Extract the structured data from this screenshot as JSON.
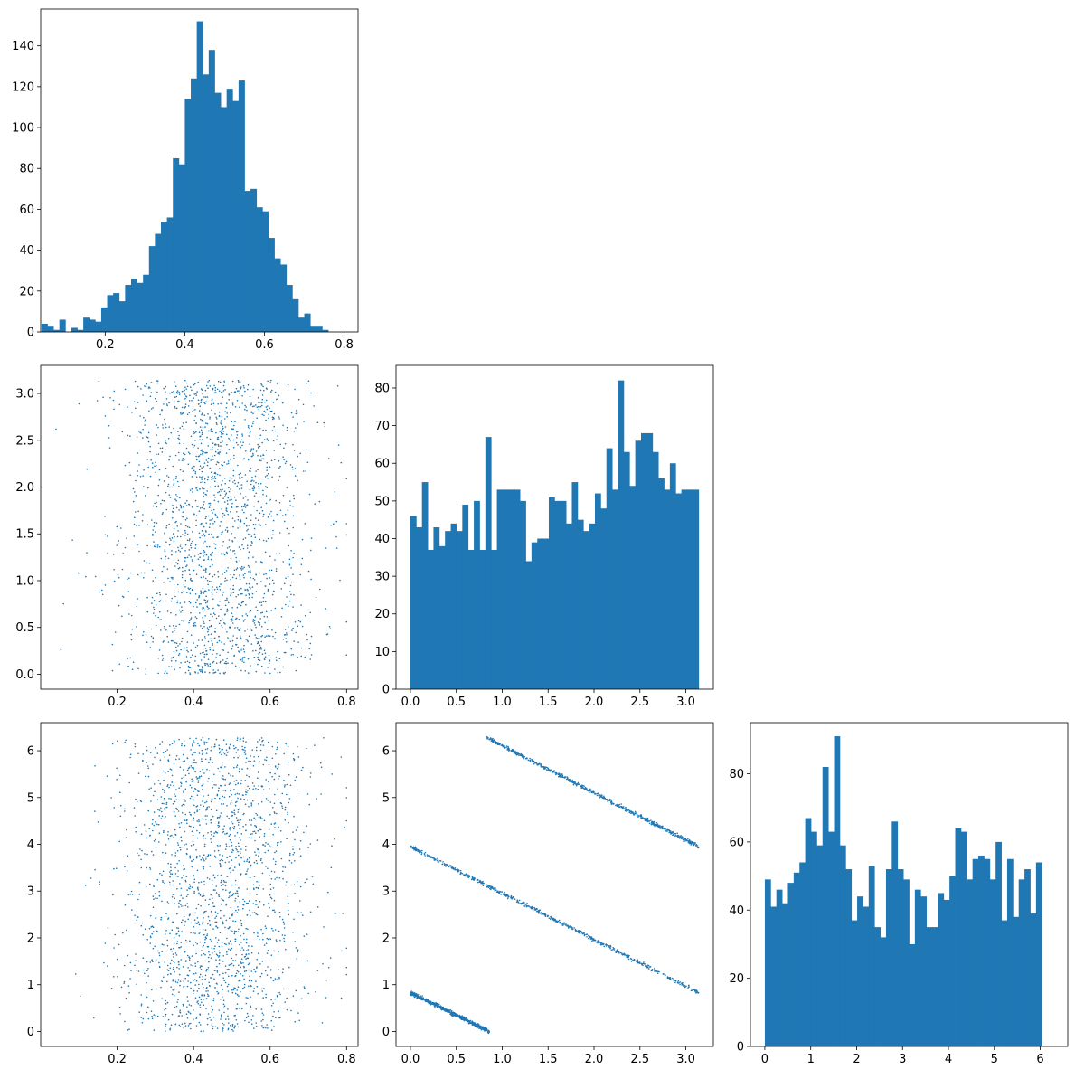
{
  "colors": {
    "bar": "#1f77b4",
    "point": "#1f77b4",
    "axis": "#000000",
    "background": "#ffffff"
  },
  "chart_data": [
    {
      "id": "hist-00",
      "type": "bar",
      "variant": "histogram",
      "position": "row 1, col 1",
      "title": "",
      "xlabel": "",
      "ylabel": "",
      "xlim": [
        0.038,
        0.835
      ],
      "ylim": [
        0,
        158
      ],
      "bin_start": 0.04,
      "bin_width": 0.015,
      "values": [
        4,
        3,
        1,
        6,
        0,
        2,
        1,
        7,
        6,
        5,
        12,
        18,
        19,
        15,
        23,
        26,
        24,
        28,
        42,
        48,
        54,
        56,
        85,
        82,
        114,
        124,
        152,
        126,
        138,
        117,
        110,
        119,
        113,
        123,
        69,
        70,
        61,
        59,
        46,
        36,
        33,
        23,
        16,
        7,
        9,
        3,
        3,
        1,
        0,
        0
      ],
      "xticks": [
        0.2,
        0.4,
        0.6,
        0.8
      ],
      "xtick_labels": [
        "0.2",
        "0.4",
        "0.6",
        "0.8"
      ],
      "yticks": [
        0,
        20,
        40,
        60,
        80,
        100,
        120,
        140
      ],
      "ytick_labels": [
        "0",
        "20",
        "40",
        "60",
        "80",
        "100",
        "120",
        "140"
      ]
    },
    {
      "id": "scatter-10",
      "type": "scatter",
      "position": "row 2, col 1",
      "title": "",
      "xlabel": "",
      "ylabel": "",
      "xlim": [
        0.0,
        0.83
      ],
      "ylim": [
        -0.16,
        3.3
      ],
      "n_points": 2000,
      "x_distribution": {
        "kind": "approx normal",
        "mean": 0.46,
        "sd": 0.12,
        "min": 0.04,
        "max": 0.8
      },
      "y_distribution": {
        "kind": "approx uniform",
        "min": 0.0,
        "max": 3.14
      },
      "xticks": [
        0.2,
        0.4,
        0.6,
        0.8
      ],
      "xtick_labels": [
        "0.2",
        "0.4",
        "0.6",
        "0.8"
      ],
      "yticks": [
        0.0,
        0.5,
        1.0,
        1.5,
        2.0,
        2.5,
        3.0
      ],
      "ytick_labels": [
        "0.0",
        "0.5",
        "1.0",
        "1.5",
        "2.0",
        "2.5",
        "3.0"
      ]
    },
    {
      "id": "hist-11",
      "type": "bar",
      "variant": "histogram",
      "position": "row 2, col 2",
      "title": "",
      "xlabel": "",
      "ylabel": "",
      "xlim": [
        -0.157,
        3.3
      ],
      "ylim": [
        0,
        86
      ],
      "bin_start": 0.0,
      "bin_width": 0.0628,
      "values": [
        46,
        43,
        55,
        37,
        43,
        38,
        42,
        44,
        42,
        49,
        37,
        50,
        37,
        67,
        37,
        53,
        53,
        53,
        53,
        50,
        34,
        39,
        40,
        40,
        51,
        50,
        50,
        44,
        55,
        45,
        42,
        44,
        52,
        48,
        64,
        53,
        82,
        63,
        54,
        66,
        68,
        68,
        63,
        56,
        53,
        60,
        52,
        53,
        53,
        53
      ],
      "xticks": [
        0.0,
        0.5,
        1.0,
        1.5,
        2.0,
        2.5,
        3.0
      ],
      "xtick_labels": [
        "0.0",
        "0.5",
        "1.0",
        "1.5",
        "2.0",
        "2.5",
        "3.0"
      ],
      "yticks": [
        0,
        10,
        20,
        30,
        40,
        50,
        60,
        70,
        80
      ],
      "ytick_labels": [
        "0",
        "10",
        "20",
        "30",
        "40",
        "50",
        "60",
        "70",
        "80"
      ]
    },
    {
      "id": "scatter-20",
      "type": "scatter",
      "position": "row 3, col 1",
      "title": "",
      "xlabel": "",
      "ylabel": "",
      "xlim": [
        0.0,
        0.83
      ],
      "ylim": [
        -0.32,
        6.6
      ],
      "n_points": 2000,
      "x_distribution": {
        "kind": "approx normal",
        "mean": 0.46,
        "sd": 0.12,
        "min": 0.04,
        "max": 0.8
      },
      "y_distribution": {
        "kind": "approx uniform",
        "min": 0.0,
        "max": 6.28
      },
      "xticks": [
        0.2,
        0.4,
        0.6,
        0.8
      ],
      "xtick_labels": [
        "0.2",
        "0.4",
        "0.6",
        "0.8"
      ],
      "yticks": [
        0,
        1,
        2,
        3,
        4,
        5,
        6
      ],
      "ytick_labels": [
        "0",
        "1",
        "2",
        "3",
        "4",
        "5",
        "6"
      ]
    },
    {
      "id": "scatter-21",
      "type": "scatter",
      "position": "row 3, col 2",
      "title": "",
      "xlabel": "",
      "ylabel": "",
      "xlim": [
        -0.157,
        3.3
      ],
      "ylim": [
        -0.32,
        6.6
      ],
      "n_points": 2000,
      "relation": "y = c - x (mod 2π)",
      "bands": [
        {
          "x_start": 0.0,
          "y_start": 0.83,
          "x_end": 0.86,
          "y_end": 0.0
        },
        {
          "x_start": 0.0,
          "y_start": 3.95,
          "x_end": 3.14,
          "y_end": 0.83
        },
        {
          "x_start": 0.83,
          "y_start": 6.28,
          "x_end": 3.14,
          "y_end": 3.95
        }
      ],
      "xticks": [
        0.0,
        0.5,
        1.0,
        1.5,
        2.0,
        2.5,
        3.0
      ],
      "xtick_labels": [
        "0.0",
        "0.5",
        "1.0",
        "1.5",
        "2.0",
        "2.5",
        "3.0"
      ],
      "yticks": [
        0,
        1,
        2,
        3,
        4,
        5,
        6
      ],
      "ytick_labels": [
        "0",
        "1",
        "2",
        "3",
        "4",
        "5",
        "6"
      ]
    },
    {
      "id": "hist-22",
      "type": "bar",
      "variant": "histogram",
      "position": "row 3, col 3",
      "title": "",
      "xlabel": "",
      "ylabel": "",
      "xlim": [
        -0.314,
        6.6
      ],
      "ylim": [
        0,
        95
      ],
      "bin_start": 0.0,
      "bin_width": 0.1257,
      "values": [
        49,
        41,
        46,
        42,
        48,
        51,
        54,
        67,
        63,
        59,
        82,
        63,
        91,
        59,
        52,
        37,
        44,
        41,
        53,
        35,
        32,
        52,
        66,
        52,
        49,
        30,
        46,
        44,
        35,
        35,
        45,
        43,
        50,
        64,
        63,
        49,
        55,
        56,
        55,
        49,
        60,
        37,
        55,
        38,
        49,
        52,
        39,
        54
      ],
      "xticks": [
        0,
        1,
        2,
        3,
        4,
        5,
        6
      ],
      "xtick_labels": [
        "0",
        "1",
        "2",
        "3",
        "4",
        "5",
        "6"
      ],
      "yticks": [
        0,
        20,
        40,
        60,
        80
      ],
      "ytick_labels": [
        "0",
        "20",
        "40",
        "60",
        "80"
      ]
    }
  ]
}
